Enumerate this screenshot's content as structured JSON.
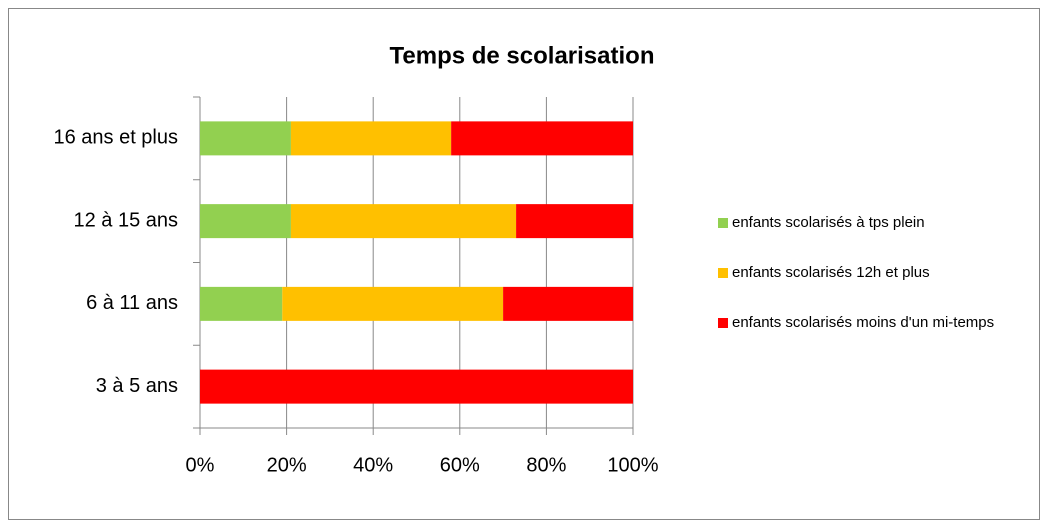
{
  "chart_data": {
    "type": "stacked_barh",
    "title": "Temps de scolarisation",
    "categories": [
      "3 à 5 ans",
      "6 à 11 ans",
      "12 à 15 ans",
      "16 ans et plus"
    ],
    "series": [
      {
        "name": "enfants scolarisés à tps plein",
        "color": "#92d050",
        "values": [
          0,
          19,
          21,
          21
        ]
      },
      {
        "name": "enfants scolarisés 12h et plus",
        "color": "#ffc000",
        "values": [
          0,
          51,
          52,
          37
        ]
      },
      {
        "name": "enfants scolarisés moins d'un mi-temps",
        "color": "#ff0000",
        "values": [
          100,
          30,
          27,
          42
        ]
      }
    ],
    "xlim": [
      0,
      100
    ],
    "xticks": [
      {
        "value": 0,
        "label": "0%"
      },
      {
        "value": 20,
        "label": "20%"
      },
      {
        "value": 40,
        "label": "40%"
      },
      {
        "value": 60,
        "label": "60%"
      },
      {
        "value": 80,
        "label": "80%"
      },
      {
        "value": 100,
        "label": "100%"
      }
    ],
    "grid": true,
    "legend": "right"
  }
}
